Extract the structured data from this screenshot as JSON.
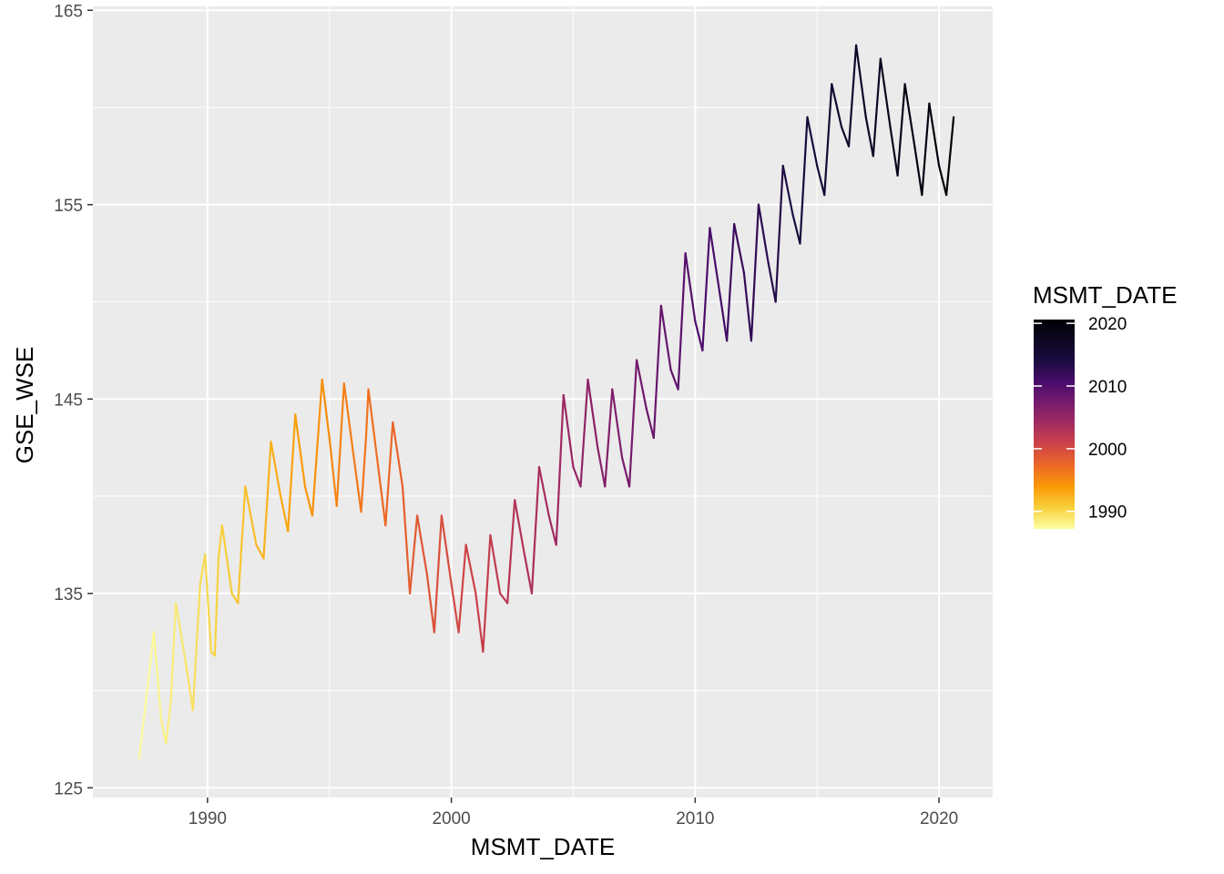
{
  "chart_data": {
    "type": "line",
    "title": "",
    "xlabel": "MSMT_DATE",
    "ylabel": "GSE_WSE",
    "xlim": [
      1985.3,
      2022.2
    ],
    "ylim": [
      124.5,
      165.2
    ],
    "x_ticks": [
      1990,
      2000,
      2010,
      2020
    ],
    "x_tick_labels": [
      "1990",
      "2000",
      "2010",
      "2020"
    ],
    "y_ticks": [
      125,
      135,
      145,
      155,
      165
    ],
    "y_tick_labels": [
      "125",
      "135",
      "145",
      "155",
      "165"
    ],
    "grid": true,
    "legend": {
      "title": "MSMT_DATE",
      "position": "right",
      "type": "colorbar",
      "range": [
        1987.2,
        2020.6
      ],
      "ticks": [
        1990,
        2000,
        2010,
        2020
      ],
      "tick_labels": [
        "1990",
        "2000",
        "2010",
        "2020"
      ]
    },
    "color_scale": {
      "name": "inferno (reversed)",
      "stops": [
        {
          "t": 0.0,
          "color": "#FCFFA4"
        },
        {
          "t": 0.1,
          "color": "#F7D13D"
        },
        {
          "t": 0.2,
          "color": "#FB9B06"
        },
        {
          "t": 0.3,
          "color": "#ED6925"
        },
        {
          "t": 0.4,
          "color": "#CF4446"
        },
        {
          "t": 0.5,
          "color": "#A52C60"
        },
        {
          "t": 0.6,
          "color": "#781C6D"
        },
        {
          "t": 0.7,
          "color": "#4A0C6B"
        },
        {
          "t": 0.8,
          "color": "#1B0C41"
        },
        {
          "t": 1.0,
          "color": "#000004"
        }
      ]
    },
    "series": [
      {
        "x": [
          1987.2,
          1987.8,
          1988.1,
          1988.3,
          1988.5,
          1988.7,
          1989.1,
          1989.4,
          1989.7,
          1989.9,
          1990.15,
          1990.3,
          1990.45,
          1990.6,
          1991.0,
          1991.25,
          1991.55,
          1992.0,
          1992.3,
          1992.6,
          1993.0,
          1993.3,
          1993.6,
          1994.0,
          1994.3,
          1994.7,
          1995.0,
          1995.3,
          1995.6,
          1996.0,
          1996.3,
          1996.5,
          1996.6,
          1997.0,
          1997.3,
          1997.6,
          1998.0,
          1998.3,
          1998.6,
          1999.0,
          1999.3,
          1999.6,
          2000.0,
          2000.3,
          2000.6,
          2001.0,
          2001.3,
          2001.6,
          2002.0,
          2002.3,
          2002.6,
          2003.0,
          2003.3,
          2003.6,
          2004.0,
          2004.3,
          2004.6,
          2005.0,
          2005.3,
          2005.6,
          2006.0,
          2006.3,
          2006.6,
          2007.0,
          2007.3,
          2007.6,
          2008.0,
          2008.3,
          2008.6,
          2009.0,
          2009.3,
          2009.6,
          2010.0,
          2010.3,
          2010.6,
          2011.0,
          2011.3,
          2011.6,
          2012.0,
          2012.3,
          2012.6,
          2013.0,
          2013.3,
          2013.6,
          2014.0,
          2014.3,
          2014.6,
          2015.0,
          2015.3,
          2015.6,
          2016.0,
          2016.3,
          2016.6,
          2017.0,
          2017.3,
          2017.6,
          2018.0,
          2018.3,
          2018.6,
          2019.0,
          2019.3,
          2019.6,
          2020.0,
          2020.3,
          2020.6
        ],
        "y": [
          126.5,
          133.0,
          128.5,
          127.3,
          129.5,
          134.5,
          131.5,
          129.0,
          135.5,
          137.0,
          132.0,
          131.8,
          136.8,
          138.5,
          135.0,
          134.5,
          140.5,
          137.5,
          136.8,
          142.8,
          140.0,
          138.2,
          144.2,
          140.5,
          139.0,
          146.0,
          143.0,
          139.5,
          145.8,
          142.0,
          139.2,
          143.0,
          145.5,
          141.5,
          138.5,
          143.8,
          140.5,
          135.0,
          139.0,
          136.0,
          133.0,
          139.0,
          135.5,
          133.0,
          137.5,
          135.0,
          132.0,
          138.0,
          135.0,
          134.5,
          139.8,
          137.0,
          135.0,
          141.5,
          139.0,
          137.5,
          145.2,
          141.5,
          140.5,
          146.0,
          142.5,
          140.5,
          145.5,
          142.0,
          140.5,
          147.0,
          144.5,
          143.0,
          149.8,
          146.5,
          145.5,
          152.5,
          149.0,
          147.5,
          153.8,
          150.5,
          148.0,
          154.0,
          151.5,
          148.0,
          155.0,
          152.0,
          150.0,
          157.0,
          154.5,
          153.0,
          159.5,
          157.0,
          155.5,
          161.2,
          159.0,
          158.0,
          163.2,
          159.5,
          157.5,
          162.5,
          159.0,
          156.5,
          161.2,
          158.0,
          155.5,
          160.2,
          157.0,
          155.5,
          159.5
        ]
      }
    ]
  }
}
